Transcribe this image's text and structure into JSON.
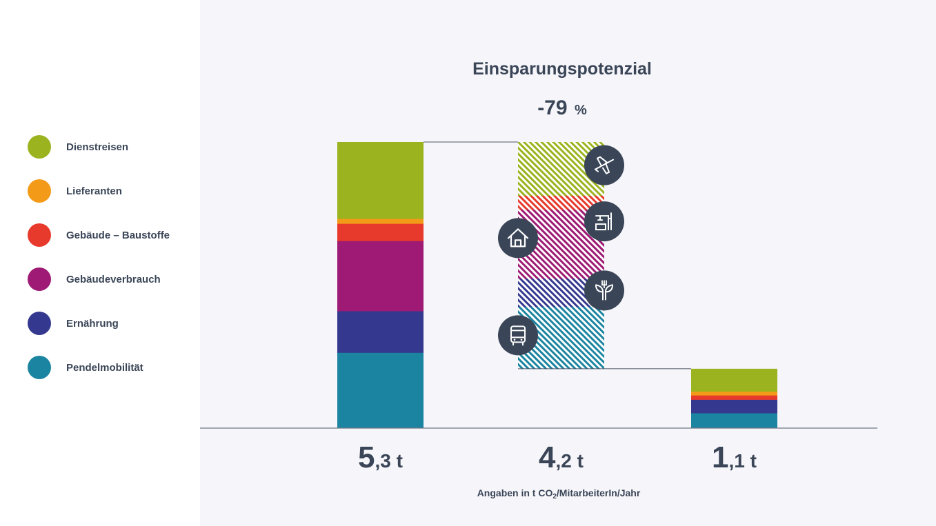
{
  "chart_data": {
    "type": "bar",
    "title": "Einsparungspotenzial",
    "savings": {
      "value": "-79",
      "unit": "%"
    },
    "note": {
      "prefix": "Angaben in t CO",
      "sub": "2",
      "suffix": "/MitarbeiterIn/Jahr"
    },
    "colors": {
      "Dienstreisen": "#9bb31f",
      "Lieferanten": "#f39b18",
      "Gebäude – Baustoffe": "#e73a2c",
      "Gebäudeverbrauch": "#9e1a74",
      "Ernährung": "#34388f",
      "Pendelmobilität": "#1b84a0"
    },
    "legend": [
      "Dienstreisen",
      "Lieferanten",
      "Gebäude – Baustoffe",
      "Gebäudeverbrauch",
      "Ernährung",
      "Pendelmobilität"
    ],
    "bars": [
      {
        "total_label": {
          "major": "5",
          "minor": ",3 t"
        },
        "style": "solid",
        "segments": [
          {
            "category": "Pendelmobilität",
            "value": 1.4
          },
          {
            "category": "Ernährung",
            "value": 0.77
          },
          {
            "category": "Gebäudeverbrauch",
            "value": 1.3
          },
          {
            "category": "Gebäude – Baustoffe",
            "value": 0.32
          },
          {
            "category": "Lieferanten",
            "value": 0.09
          },
          {
            "category": "Dienstreisen",
            "value": 1.42
          }
        ]
      },
      {
        "total_label": {
          "major": "4",
          "minor": ",2 t"
        },
        "style": "hatched",
        "base": 1.1,
        "segments": [
          {
            "category": "Pendelmobilität",
            "value": 1.15
          },
          {
            "category": "Ernährung",
            "value": 0.52
          },
          {
            "category": "Gebäudeverbrauch",
            "value": 1.28
          },
          {
            "category": "Gebäude – Baustoffe",
            "value": 0.26
          },
          {
            "category": "Dienstreisen",
            "value": 0.99
          }
        ]
      },
      {
        "total_label": {
          "major": "1",
          "minor": ",1 t"
        },
        "style": "solid",
        "segments": [
          {
            "category": "Pendelmobilität",
            "value": 0.28
          },
          {
            "category": "Ernährung",
            "value": 0.25
          },
          {
            "category": "Gebäude – Baustoffe",
            "value": 0.08
          },
          {
            "category": "Lieferanten",
            "value": 0.07
          },
          {
            "category": "Dienstreisen",
            "value": 0.42
          }
        ]
      }
    ],
    "icons": [
      {
        "name": "airplane-icon",
        "bar": 1,
        "side": "right",
        "level": 4.87
      },
      {
        "name": "crane-icon",
        "bar": 1,
        "side": "right",
        "level": 3.83
      },
      {
        "name": "house-icon",
        "bar": 1,
        "side": "left",
        "level": 3.52
      },
      {
        "name": "plant-fork-icon",
        "bar": 1,
        "side": "right",
        "level": 2.55
      },
      {
        "name": "bus-icon",
        "bar": 1,
        "side": "left",
        "level": 1.72
      }
    ],
    "ylim": [
      0,
      5.3
    ],
    "grid": false,
    "legend_placement": "left"
  }
}
